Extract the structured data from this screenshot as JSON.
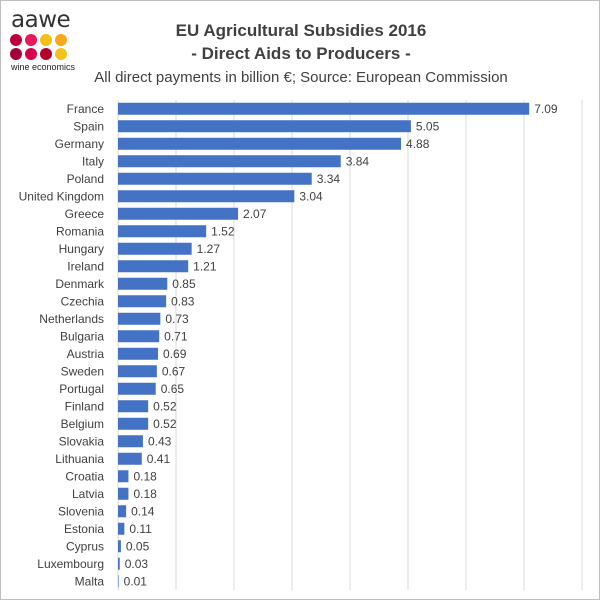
{
  "brand": {
    "logo_text": "aawe",
    "logo_subtitle": "wine economics",
    "dot_colors": [
      "#c0003c",
      "#e8185a",
      "#f5c016",
      "#f7a81b",
      "#a6003a",
      "#d6004d",
      "#b5002e",
      "#f2c21a"
    ]
  },
  "chart_data": {
    "type": "bar",
    "orientation": "horizontal",
    "title": "EU Agricultural Subsidies 2016",
    "subtitle_line": "- Direct Aids to Producers -",
    "description": "All direct payments in billion €; Source: European Commission",
    "categories": [
      "France",
      "Spain",
      "Germany",
      "Italy",
      "Poland",
      "United Kingdom",
      "Greece",
      "Romania",
      "Hungary",
      "Ireland",
      "Denmark",
      "Czechia",
      "Netherlands",
      "Bulgaria",
      "Austria",
      "Sweden",
      "Portugal",
      "Finland",
      "Belgium",
      "Slovakia",
      "Lithuania",
      "Croatia",
      "Latvia",
      "Slovenia",
      "Estonia",
      "Cyprus",
      "Luxembourg",
      "Malta"
    ],
    "values": [
      7.09,
      5.05,
      4.88,
      3.84,
      3.34,
      3.04,
      2.07,
      1.52,
      1.27,
      1.21,
      0.85,
      0.83,
      0.73,
      0.71,
      0.69,
      0.67,
      0.65,
      0.52,
      0.52,
      0.43,
      0.41,
      0.18,
      0.18,
      0.14,
      0.11,
      0.05,
      0.03,
      0.01
    ],
    "value_labels": [
      "7.09",
      "5.05",
      "4.88",
      "3.84",
      "3.34",
      "3.04",
      "2.07",
      "1.52",
      "1.27",
      "1.21",
      "0.85",
      "0.83",
      "0.73",
      "0.71",
      "0.69",
      "0.67",
      "0.65",
      "0.52",
      "0.52",
      "0.43",
      "0.41",
      "0.18",
      "0.18",
      "0.14",
      "0.11",
      "0.05",
      "0.03",
      "0.01"
    ],
    "xlim": [
      0,
      8
    ],
    "gridlines": [
      0,
      1,
      2,
      3,
      4,
      5,
      6,
      7,
      8
    ],
    "grid": true,
    "bar_color": "#4472c4",
    "grid_color": "#d9d9d9",
    "legend": "none"
  }
}
